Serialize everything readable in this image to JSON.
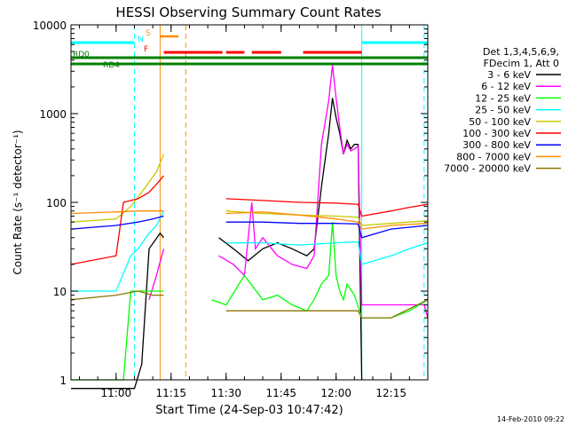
{
  "chart_data": {
    "type": "line",
    "title": "HESSI Observing Summary Count Rates",
    "xlabel": "Start Time (24-Sep-03 10:47:42)",
    "ylabel": "Count Rate (s⁻¹ detector⁻¹)",
    "y_scale": "log",
    "ylim": [
      1,
      10000
    ],
    "xlim": [
      "10:47:42",
      "12:25:00"
    ],
    "x_ticks": [
      "11:00",
      "11:15",
      "11:30",
      "11:45",
      "12:00",
      "12:15"
    ],
    "y_ticks": [
      "1",
      "10",
      "100",
      "1000",
      "10000"
    ],
    "grid": false,
    "legend_header": [
      "Det 1,3,4,5,6,9,",
      "FDecim 1, Att 0"
    ],
    "legend_placement": "right",
    "series": [
      {
        "name": "3 - 6 keV",
        "color": "#000000",
        "t": [
          "10:47:42",
          "11:00",
          "11:05",
          "11:07",
          "11:09",
          "11:12",
          "11:13",
          "11:24",
          "11:28",
          "11:32",
          "11:36",
          "11:40",
          "11:44",
          "11:48",
          "11:52",
          "11:54",
          "11:56",
          "11:58",
          "11:59",
          "12:00",
          "12:01",
          "12:02",
          "12:03",
          "12:04",
          "12:05",
          "12:06",
          "12:07"
        ],
        "values": [
          0.8,
          0.8,
          0.8,
          1.5,
          30,
          45,
          40,
          null,
          40,
          30,
          22,
          30,
          35,
          30,
          25,
          30,
          150,
          600,
          1500,
          900,
          600,
          350,
          500,
          400,
          450,
          450,
          1
        ]
      },
      {
        "name": "6 - 12 keV",
        "color": "#ff00ff",
        "t": [
          "11:09",
          "11:11",
          "11:13",
          "11:24",
          "11:28",
          "11:32",
          "11:35",
          "11:37",
          "11:38",
          "11:40",
          "11:44",
          "11:48",
          "11:52",
          "11:54",
          "11:56",
          "11:58",
          "11:59",
          "12:00",
          "12:01",
          "12:02",
          "12:03",
          "12:04",
          "12:05",
          "12:06",
          "12:07",
          "12:24",
          "12:25"
        ],
        "values": [
          8,
          15,
          30,
          null,
          25,
          20,
          15,
          100,
          30,
          40,
          25,
          20,
          18,
          25,
          450,
          1400,
          3500,
          1500,
          700,
          350,
          450,
          380,
          400,
          430,
          7,
          7,
          5
        ]
      },
      {
        "name": "12 - 25 keV",
        "color": "#00ff00",
        "t": [
          "10:47:42",
          "11:02",
          "11:04",
          "11:06",
          "11:09",
          "11:12",
          "11:13",
          "11:24",
          "11:26",
          "11:30",
          "11:35",
          "11:40",
          "11:44",
          "11:48",
          "11:52",
          "11:54",
          "11:56",
          "11:58",
          "11:59",
          "12:00",
          "12:01",
          "12:02",
          "12:03",
          "12:05",
          "12:07",
          "12:15",
          "12:20",
          "12:25"
        ],
        "values": [
          1,
          1,
          10,
          10,
          10,
          10,
          10,
          null,
          8,
          7,
          15,
          8,
          9,
          7,
          6,
          8,
          12,
          15,
          60,
          15,
          10,
          8,
          12,
          9,
          5,
          5,
          6,
          8
        ]
      },
      {
        "name": "25 - 50 keV",
        "color": "#00ffff",
        "t": [
          "10:47:42",
          "11:00",
          "11:04",
          "11:06",
          "11:09",
          "11:11",
          "11:13",
          "11:24",
          "11:30",
          "11:40",
          "11:50",
          "12:00",
          "12:06",
          "12:07",
          "12:15",
          "12:20",
          "12:25"
        ],
        "values": [
          10,
          10,
          25,
          30,
          45,
          55,
          80,
          null,
          35,
          35,
          33,
          35,
          36,
          20,
          25,
          30,
          35
        ]
      },
      {
        "name": "50 - 100 keV",
        "color": "#c8c800",
        "t": [
          "10:47:42",
          "11:00",
          "11:04",
          "11:07",
          "11:09",
          "11:11",
          "11:13",
          "11:24",
          "11:30",
          "11:40",
          "11:50",
          "12:00",
          "12:06",
          "12:07",
          "12:15",
          "12:20",
          "12:25"
        ],
        "values": [
          60,
          65,
          90,
          130,
          170,
          220,
          350,
          null,
          80,
          75,
          72,
          70,
          68,
          55,
          58,
          60,
          62
        ]
      },
      {
        "name": "100 - 300 keV",
        "color": "#ff0000",
        "t": [
          "10:47:42",
          "11:00",
          "11:02",
          "11:06",
          "11:09",
          "11:11",
          "11:13",
          "11:24",
          "11:30",
          "11:40",
          "11:50",
          "12:00",
          "12:06",
          "12:07",
          "12:15",
          "12:20",
          "12:25"
        ],
        "values": [
          20,
          25,
          100,
          110,
          130,
          160,
          200,
          null,
          110,
          105,
          100,
          98,
          95,
          70,
          80,
          88,
          95
        ]
      },
      {
        "name": "300 - 800 keV",
        "color": "#0000ff",
        "t": [
          "10:47:42",
          "11:00",
          "11:06",
          "11:10",
          "11:13",
          "11:24",
          "11:30",
          "11:40",
          "11:50",
          "12:00",
          "12:06",
          "12:07",
          "12:15",
          "12:25"
        ],
        "values": [
          50,
          55,
          60,
          65,
          70,
          null,
          60,
          60,
          58,
          58,
          57,
          40,
          50,
          55
        ]
      },
      {
        "name": "800 - 7000 keV",
        "color": "#ff8c00",
        "t": [
          "10:47:42",
          "11:00",
          "11:06",
          "11:10",
          "11:13",
          "11:24",
          "11:30",
          "11:40",
          "11:50",
          "12:00",
          "12:06",
          "12:07",
          "12:15",
          "12:25"
        ],
        "values": [
          75,
          78,
          80,
          80,
          80,
          null,
          75,
          78,
          72,
          65,
          60,
          50,
          55,
          58
        ]
      },
      {
        "name": "7000 - 20000 keV",
        "color": "#8b7500",
        "t": [
          "10:47:42",
          "11:00",
          "11:06",
          "11:10",
          "11:13",
          "11:24",
          "11:30",
          "11:40",
          "11:50",
          "12:00",
          "12:06",
          "12:07",
          "12:15",
          "12:25"
        ],
        "values": [
          8,
          9,
          10,
          9,
          9,
          null,
          6,
          6,
          6,
          6,
          6,
          5,
          5,
          8
        ]
      }
    ],
    "flags": [
      {
        "label": "S",
        "color": "#ff8c00",
        "segments": [
          [
            "11:12",
            "11:17"
          ]
        ]
      },
      {
        "label": "N",
        "color": "#00ffff",
        "segments": [
          [
            "10:47:42",
            "11:05"
          ],
          [
            "12:07",
            "12:25"
          ]
        ]
      },
      {
        "label": "F",
        "color": "#ff0000",
        "segments": [
          [
            "11:13",
            "11:29"
          ],
          [
            "11:30",
            "11:35"
          ],
          [
            "11:37",
            "11:45"
          ],
          [
            "11:51",
            "12:00"
          ],
          [
            "12:00",
            "12:07"
          ]
        ]
      },
      {
        "label": "RD0",
        "color": "#008000",
        "segments": [
          [
            "10:47:42",
            "12:25"
          ]
        ]
      },
      {
        "label": "RD4",
        "color": "#008000",
        "segments": [
          [
            "10:47:42",
            "11:12"
          ],
          [
            "11:12",
            "12:25"
          ]
        ]
      }
    ],
    "vertical_lines": [
      {
        "t": "11:05",
        "color": "#00ffff",
        "style": "dashed"
      },
      {
        "t": "11:12",
        "color": "#ff8c00",
        "style": "solid"
      },
      {
        "t": "11:19",
        "color": "#ff8c00",
        "style": "dashed"
      },
      {
        "t": "12:07",
        "color": "#00ffff",
        "style": "solid"
      },
      {
        "t": "12:24",
        "color": "#00ffff",
        "style": "dashed"
      }
    ]
  },
  "footer": {
    "timestamp": "14-Feb-2010 09:22"
  }
}
